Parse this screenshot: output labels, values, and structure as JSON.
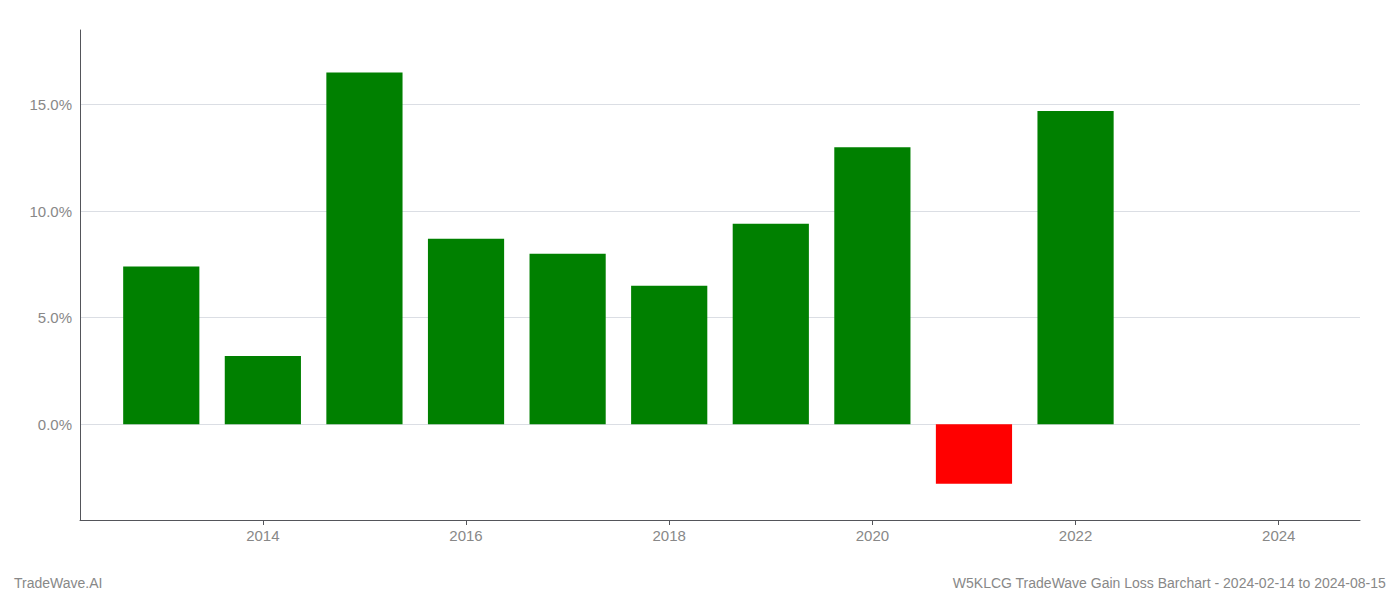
{
  "chart_data": {
    "type": "bar",
    "x": [
      2013,
      2014,
      2015,
      2016,
      2017,
      2018,
      2019,
      2020,
      2021,
      2022
    ],
    "values": [
      7.4,
      3.2,
      16.5,
      8.7,
      8.0,
      6.5,
      9.4,
      13.0,
      -2.8,
      14.7
    ],
    "colors": [
      "#008000",
      "#008000",
      "#008000",
      "#008000",
      "#008000",
      "#008000",
      "#008000",
      "#008000",
      "#ff0000",
      "#008000"
    ],
    "xlim": [
      2012.2,
      2024.8
    ],
    "xticks": [
      2014,
      2016,
      2018,
      2020,
      2022,
      2024
    ],
    "ylim": [
      -4.5,
      18.5
    ],
    "yticks": [
      {
        "value": 0.0,
        "label": "0.0%"
      },
      {
        "value": 5.0,
        "label": "5.0%"
      },
      {
        "value": 10.0,
        "label": "10.0%"
      },
      {
        "value": 15.0,
        "label": "15.0%"
      }
    ],
    "grid": true,
    "annotations": [
      "TradeWave.AI",
      "W5KLCG TradeWave Gain Loss Barchart - 2024-02-14 to 2024-08-15"
    ]
  }
}
